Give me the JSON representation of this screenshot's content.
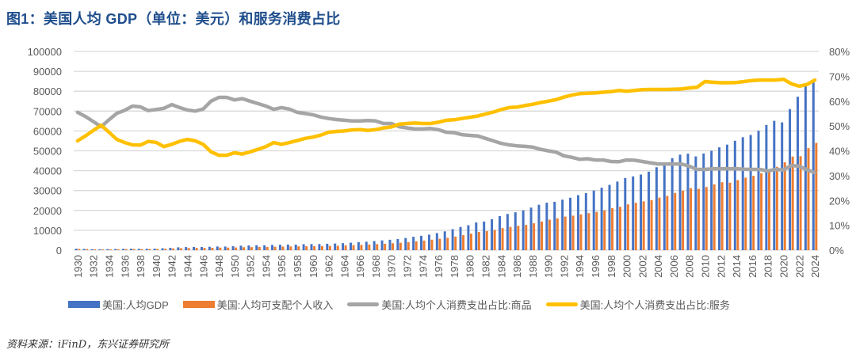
{
  "title": "图1：美国人均 GDP（单位：美元）和服务消费占比",
  "source": "资料来源：iFinD，东兴证券研究所",
  "colors": {
    "gdp": "#4472c4",
    "income": "#ed7d31",
    "goods": "#a5a5a5",
    "services": "#ffc000",
    "grid": "#d9d9d9",
    "title": "#1f4e8c"
  },
  "legend": [
    {
      "label": "美国:人均GDP",
      "kind": "bar",
      "color": "#4472c4"
    },
    {
      "label": "美国:人均可支配个人收入",
      "kind": "bar",
      "color": "#ed7d31"
    },
    {
      "label": "美国:人均个人消费支出占比:商品",
      "kind": "line",
      "color": "#a5a5a5"
    },
    {
      "label": "美国:人均个人消费支出占比:服务",
      "kind": "line",
      "color": "#ffc000"
    }
  ],
  "chart_data": {
    "type": "bar+line",
    "title": "美国人均 GDP（单位：美元）和服务消费占比",
    "xlabel": "",
    "ylabel_left": "美元",
    "ylabel_right": "%",
    "ylim_left": [
      0,
      100000
    ],
    "ylim_right": [
      0,
      80
    ],
    "yticks_left": [
      "0",
      "10000",
      "20000",
      "30000",
      "40000",
      "50000",
      "60000",
      "70000",
      "80000",
      "90000",
      "100000"
    ],
    "yticks_right": [
      "0%",
      "10%",
      "20%",
      "30%",
      "40%",
      "50%",
      "60%",
      "70%",
      "80%"
    ],
    "grid": true,
    "legend_position": "bottom",
    "x_start": 1930,
    "x_end": 2024,
    "x_tick_step": 2,
    "series": [
      {
        "name": "美国:人均GDP",
        "type": "bar",
        "axis": "left",
        "values": [
          740,
          620,
          470,
          460,
          520,
          590,
          660,
          720,
          670,
          710,
          770,
          950,
          1190,
          1440,
          1560,
          1590,
          1580,
          1710,
          1860,
          1830,
          1990,
          2280,
          2380,
          2490,
          2470,
          2630,
          2720,
          2830,
          2800,
          3010,
          3060,
          3090,
          3230,
          3340,
          3530,
          3760,
          4060,
          4250,
          4590,
          4920,
          5230,
          5610,
          6110,
          6740,
          7240,
          7800,
          8590,
          9460,
          10560,
          11670,
          12550,
          13950,
          14430,
          15540,
          17120,
          18220,
          19070,
          20040,
          21420,
          22850,
          23890,
          24340,
          25420,
          26390,
          27690,
          28690,
          29970,
          31460,
          32850,
          34510,
          36330,
          37130,
          38040,
          39490,
          41720,
          44110,
          46300,
          48050,
          48570,
          47190,
          48650,
          50030,
          51740,
          53110,
          55050,
          56840,
          57970,
          60110,
          63010,
          65100,
          64320,
          71000,
          77200,
          82500,
          85500
        ]
      },
      {
        "name": "美国:人均可支配个人收入",
        "type": "bar",
        "axis": "left",
        "values": [
          600,
          540,
          440,
          380,
          420,
          470,
          540,
          580,
          540,
          570,
          590,
          690,
          870,
          990,
          1070,
          1120,
          1160,
          1210,
          1310,
          1290,
          1360,
          1480,
          1530,
          1600,
          1630,
          1720,
          1810,
          1880,
          1920,
          1980,
          2010,
          2050,
          2150,
          2220,
          2370,
          2530,
          2690,
          2850,
          3030,
          3210,
          3470,
          3730,
          3980,
          4440,
          4820,
          5270,
          5720,
          6200,
          6830,
          7550,
          8320,
          9140,
          9580,
          10180,
          11100,
          11720,
          12280,
          12700,
          13530,
          14390,
          15340,
          16000,
          16880,
          17380,
          18010,
          18630,
          19260,
          20060,
          21170,
          21830,
          23040,
          23810,
          24560,
          25210,
          26450,
          27320,
          28810,
          29920,
          31210,
          30840,
          31790,
          33080,
          34180,
          33940,
          35240,
          36490,
          37380,
          38700,
          40290,
          41920,
          44220,
          47100,
          47280,
          51350,
          54000
        ]
      },
      {
        "name": "美国:人均个人消费支出占比:商品",
        "type": "line",
        "axis": "right",
        "values": [
          55.5,
          53.8,
          51.8,
          49.7,
          52.5,
          55.1,
          56.3,
          58.0,
          57.7,
          56.2,
          56.6,
          57.1,
          58.6,
          57.4,
          56.4,
          56.0,
          56.8,
          60.0,
          61.5,
          61.5,
          60.5,
          61.0,
          60.0,
          59.0,
          58.0,
          56.7,
          57.4,
          56.8,
          55.5,
          55.0,
          54.5,
          53.6,
          53.0,
          52.6,
          52.3,
          52.0,
          52.0,
          52.2,
          52.0,
          51.0,
          51.0,
          49.7,
          49.2,
          48.8,
          48.8,
          49.0,
          48.5,
          47.5,
          47.3,
          46.5,
          46.2,
          46.0,
          45.0,
          44.0,
          43.0,
          42.4,
          42.0,
          41.8,
          41.5,
          40.6,
          40.0,
          39.5,
          38.0,
          37.4,
          36.6,
          36.8,
          36.3,
          36.3,
          35.7,
          35.6,
          36.3,
          36.2,
          35.7,
          35.2,
          34.7,
          34.7,
          34.7,
          34.7,
          33.8,
          32.5,
          32.5,
          32.8,
          32.8,
          32.8,
          32.8,
          32.6,
          32.5,
          32.5,
          31.9,
          32.5,
          32.3,
          34.1,
          33.8,
          32.4,
          31.2
        ]
      },
      {
        "name": "美国:人均个人消费支出占比:服务",
        "type": "line",
        "axis": "right",
        "values": [
          44.0,
          46.0,
          48.2,
          50.3,
          47.5,
          44.6,
          43.3,
          42.4,
          42.3,
          43.8,
          43.4,
          41.7,
          42.6,
          43.8,
          44.6,
          44.0,
          42.6,
          39.6,
          38.2,
          38.2,
          39.2,
          38.7,
          39.6,
          40.6,
          41.7,
          43.3,
          42.6,
          43.3,
          44.1,
          45.0,
          45.5,
          46.3,
          47.5,
          47.8,
          48.0,
          48.4,
          48.5,
          48.2,
          48.5,
          49.2,
          49.6,
          50.7,
          51.0,
          51.2,
          51.0,
          51.0,
          51.5,
          52.3,
          52.5,
          53.0,
          53.5,
          54.0,
          54.8,
          55.6,
          56.6,
          57.4,
          57.6,
          58.2,
          58.7,
          59.4,
          60.0,
          60.6,
          61.6,
          62.4,
          63.0,
          63.2,
          63.3,
          63.6,
          63.8,
          64.3,
          64.0,
          64.3,
          64.6,
          64.7,
          64.7,
          64.7,
          64.8,
          64.9,
          65.3,
          65.6,
          67.9,
          67.6,
          67.4,
          67.4,
          67.5,
          67.9,
          68.3,
          68.5,
          68.5,
          68.5,
          68.8,
          67.0,
          66.0,
          66.7,
          68.5
        ]
      }
    ]
  }
}
